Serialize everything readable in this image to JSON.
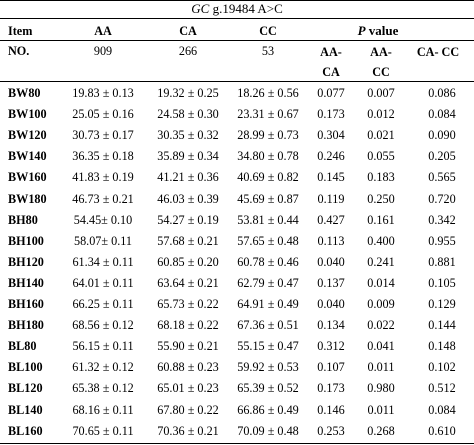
{
  "title": {
    "gene": "GC",
    "variant": " g.19484 A>C"
  },
  "header": {
    "item": "Item",
    "genotypes": [
      "AA",
      "CA",
      "CC"
    ],
    "p_italic": "P",
    "p_rest": " value",
    "no_label": "NO.",
    "counts": [
      "909",
      "266",
      "53"
    ],
    "pcols_top": [
      "AA-",
      "AA-",
      "CA- CC"
    ],
    "pcols_bottom": [
      "CA",
      "CC"
    ]
  },
  "rows": [
    {
      "item": "BW80",
      "aa": "19.83 ± 0.13",
      "ca": "19.32 ± 0.25",
      "cc": "18.26 ± 0.56",
      "p1": "0.077",
      "p2": "0.007",
      "p3": "0.086"
    },
    {
      "item": "BW100",
      "aa": "25.05 ± 0.16",
      "ca": "24.58 ± 0.30",
      "cc": "23.31 ± 0.67",
      "p1": "0.173",
      "p2": "0.012",
      "p3": "0.084"
    },
    {
      "item": "BW120",
      "aa": "30.73 ± 0.17",
      "ca": "30.35 ± 0.32",
      "cc": "28.99 ± 0.73",
      "p1": "0.304",
      "p2": "0.021",
      "p3": "0.090"
    },
    {
      "item": "BW140",
      "aa": "36.35 ± 0.18",
      "ca": "35.89 ± 0.34",
      "cc": "34.80 ± 0.78",
      "p1": "0.246",
      "p2": "0.055",
      "p3": "0.205"
    },
    {
      "item": "BW160",
      "aa": "41.83 ± 0.19",
      "ca": "41.21 ± 0.36",
      "cc": "40.69 ± 0.82",
      "p1": "0.145",
      "p2": "0.183",
      "p3": "0.565"
    },
    {
      "item": "BW180",
      "aa": "46.73 ± 0.21",
      "ca": "46.03 ± 0.39",
      "cc": "45.69 ± 0.87",
      "p1": "0.119",
      "p2": "0.250",
      "p3": "0.720"
    },
    {
      "item": "BH80",
      "aa": "54.45± 0.10",
      "ca": "54.27 ± 0.19",
      "cc": "53.81 ± 0.44",
      "p1": "0.427",
      "p2": "0.161",
      "p3": "0.342"
    },
    {
      "item": "BH100",
      "aa": "58.07± 0.11",
      "ca": "57.68 ± 0.21",
      "cc": "57.65 ± 0.48",
      "p1": "0.113",
      "p2": "0.400",
      "p3": "0.955"
    },
    {
      "item": "BH120",
      "aa": "61.34 ± 0.11",
      "ca": "60.85 ± 0.20",
      "cc": "60.78 ± 0.46",
      "p1": "0.040",
      "p2": "0.241",
      "p3": "0.881"
    },
    {
      "item": "BH140",
      "aa": "64.01 ± 0.11",
      "ca": "63.64 ± 0.21",
      "cc": "62.79 ± 0.47",
      "p1": "0.137",
      "p2": "0.014",
      "p3": "0.105"
    },
    {
      "item": "BH160",
      "aa": "66.25 ± 0.11",
      "ca": "65.73 ± 0.22",
      "cc": "64.91 ± 0.49",
      "p1": "0.040",
      "p2": "0.009",
      "p3": "0.129"
    },
    {
      "item": "BH180",
      "aa": "68.56 ± 0.12",
      "ca": "68.18 ± 0.22",
      "cc": "67.36 ± 0.51",
      "p1": "0.134",
      "p2": "0.022",
      "p3": "0.144"
    },
    {
      "item": "BL80",
      "aa": "56.15 ± 0.11",
      "ca": "55.90 ± 0.21",
      "cc": "55.15 ± 0.47",
      "p1": "0.312",
      "p2": "0.041",
      "p3": "0.148"
    },
    {
      "item": "BL100",
      "aa": "61.32 ± 0.12",
      "ca": "60.88 ± 0.23",
      "cc": "59.92 ± 0.53",
      "p1": "0.107",
      "p2": "0.011",
      "p3": "0.102"
    },
    {
      "item": "BL120",
      "aa": "65.38 ± 0.12",
      "ca": "65.01 ± 0.23",
      "cc": "65.39 ± 0.52",
      "p1": "0.173",
      "p2": "0.980",
      "p3": "0.512"
    },
    {
      "item": "BL140",
      "aa": "68.16 ± 0.11",
      "ca": "67.80 ± 0.22",
      "cc": "66.86 ± 0.49",
      "p1": "0.146",
      "p2": "0.011",
      "p3": "0.084"
    },
    {
      "item": "BL160",
      "aa": "70.65 ± 0.11",
      "ca": "70.36 ± 0.21",
      "cc": "70.09 ± 0.48",
      "p1": "0.253",
      "p2": "0.268",
      "p3": "0.610"
    }
  ]
}
